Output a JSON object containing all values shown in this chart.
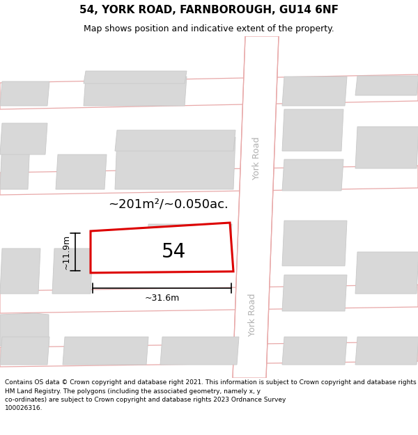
{
  "title": "54, YORK ROAD, FARNBOROUGH, GU14 6NF",
  "subtitle": "Map shows position and indicative extent of the property.",
  "footer": "Contains OS data © Crown copyright and database right 2021. This information is subject to Crown copyright and database rights 2023 and is reproduced with the permission of\nHM Land Registry. The polygons (including the associated geometry, namely x, y\nco-ordinates) are subject to Crown copyright and database rights 2023 Ordnance Survey\n100026316.",
  "area_label": "~201m²/~0.050ac.",
  "width_label": "~31.6m",
  "height_label": "~11.9m",
  "number_label": "54",
  "map_bg": "#f8f8f8",
  "road_color": "#e8a8a8",
  "building_fill": "#d8d8d8",
  "building_edge": "#c8c8c8",
  "highlight_color": "#dd0000",
  "text_color": "#000000",
  "york_road_label_color": "#b0b0b0",
  "title_fontsize": 11,
  "subtitle_fontsize": 9,
  "footer_fontsize": 6.5,
  "area_fontsize": 13,
  "number_fontsize": 20,
  "dim_fontsize": 9,
  "york_label_fontsize": 9
}
